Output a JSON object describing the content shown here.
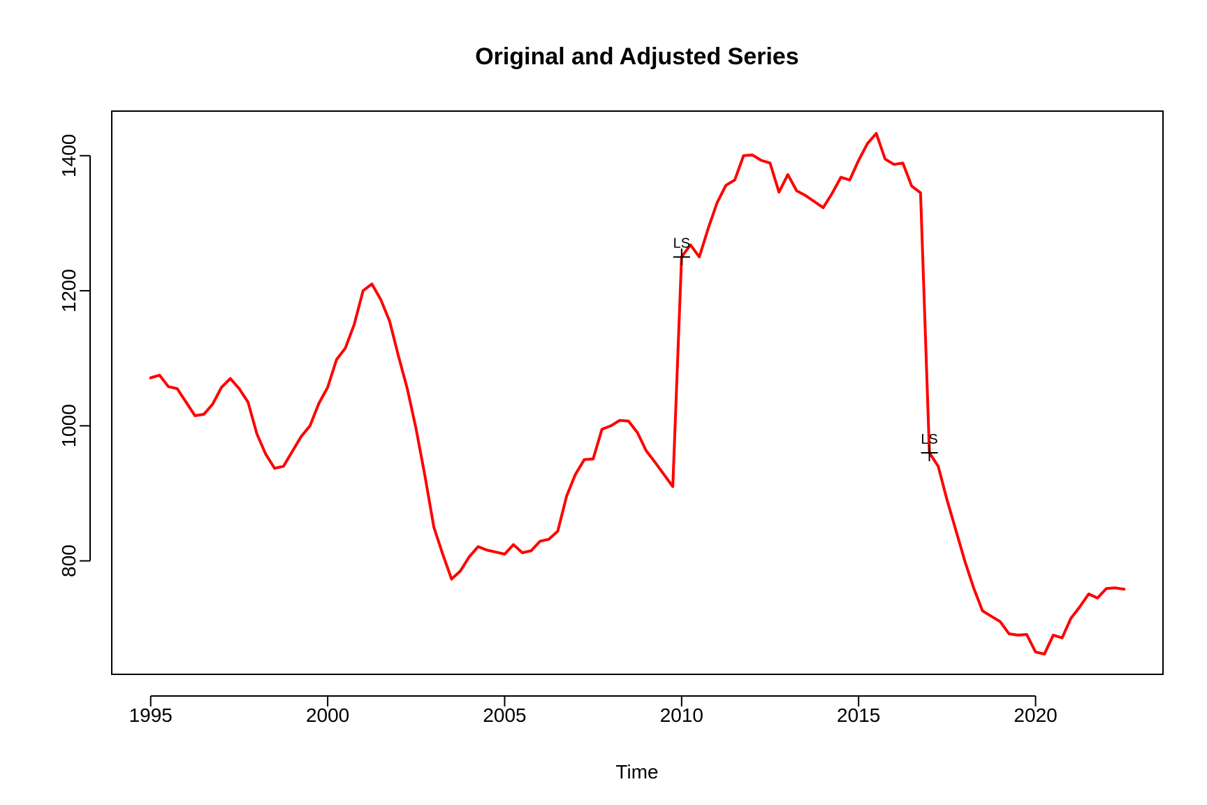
{
  "chart_data": {
    "type": "line",
    "title": "Original and Adjusted Series",
    "xlabel": "Time",
    "ylabel": "",
    "xlim": [
      1993.9,
      2023.6
    ],
    "ylim": [
      632,
      1466
    ],
    "x_ticks": [
      1995,
      2000,
      2005,
      2010,
      2015,
      2020
    ],
    "y_ticks": [
      800,
      1000,
      1200,
      1400
    ],
    "x_tick_labels": [
      "1995",
      "2000",
      "2005",
      "2010",
      "2015",
      "2020"
    ],
    "y_tick_labels": [
      "800",
      "1000",
      "1200",
      "1400"
    ],
    "grid": false,
    "legend": "none",
    "line_color": "#ff0000",
    "series": [
      {
        "x": [
          1995.0,
          1995.25,
          1995.5,
          1995.75,
          1996.0,
          1996.25,
          1996.5,
          1996.75,
          1997.0,
          1997.25,
          1997.5,
          1997.75,
          1998.0,
          1998.25,
          1998.5,
          1998.75,
          1999.0,
          1999.25,
          1999.5,
          1999.75,
          2000.0,
          2000.25,
          2000.5,
          2000.75,
          2001.0,
          2001.25,
          2001.5,
          2001.75,
          2002.0,
          2002.25,
          2002.5,
          2002.75,
          2003.0,
          2003.25,
          2003.5,
          2003.75,
          2004.0,
          2004.25,
          2004.5,
          2004.75,
          2005.0,
          2005.25,
          2005.5,
          2005.75,
          2006.0,
          2006.25,
          2006.5,
          2006.75,
          2007.0,
          2007.25,
          2007.5,
          2007.75,
          2008.0,
          2008.25,
          2008.5,
          2008.75,
          2009.0,
          2009.25,
          2009.5,
          2009.75,
          2010.0,
          2010.25,
          2010.5,
          2010.75,
          2011.0,
          2011.25,
          2011.5,
          2011.75,
          2012.0,
          2012.25,
          2012.5,
          2012.75,
          2013.0,
          2013.25,
          2013.5,
          2013.75,
          2014.0,
          2014.25,
          2014.5,
          2014.75,
          2015.0,
          2015.25,
          2015.5,
          2015.75,
          2016.0,
          2016.25,
          2016.5,
          2016.75,
          2017.0,
          2017.25,
          2017.5,
          2017.75,
          2018.0,
          2018.25,
          2018.5,
          2018.75,
          2019.0,
          2019.25,
          2019.5,
          2019.75,
          2020.0,
          2020.25,
          2020.5,
          2020.75,
          2021.0,
          2021.25,
          2021.5,
          2021.75,
          2022.0,
          2022.25,
          2022.5
        ],
        "values": [
          1071,
          1075,
          1058,
          1055,
          1035,
          1015,
          1017,
          1032,
          1057,
          1070,
          1055,
          1035,
          988,
          958,
          937,
          940,
          962,
          984,
          1000,
          1033,
          1057,
          1098,
          1115,
          1150,
          1200,
          1210,
          1187,
          1155,
          1103,
          1055,
          995,
          925,
          850,
          810,
          773,
          785,
          806,
          821,
          816,
          813,
          810,
          824,
          812,
          815,
          829,
          832,
          844,
          896,
          928,
          950,
          951,
          995,
          1000,
          1008,
          1007,
          990,
          963,
          946,
          928,
          910,
          1250,
          1268,
          1250,
          1292,
          1330,
          1356,
          1364,
          1400,
          1401,
          1393,
          1389,
          1346,
          1372,
          1348,
          1341,
          1332,
          1323,
          1344,
          1368,
          1364,
          1393,
          1418,
          1433,
          1395,
          1387,
          1389,
          1355,
          1345,
          960,
          940,
          890,
          845,
          800,
          760,
          726,
          718,
          710,
          692,
          690,
          691,
          665,
          662,
          690,
          686,
          715,
          732,
          751,
          745,
          759,
          760,
          758
        ]
      }
    ],
    "annotations": [
      {
        "x": 2010.0,
        "y": 1250,
        "label": "LS"
      },
      {
        "x": 2017.0,
        "y": 960,
        "label": "LS"
      }
    ]
  }
}
